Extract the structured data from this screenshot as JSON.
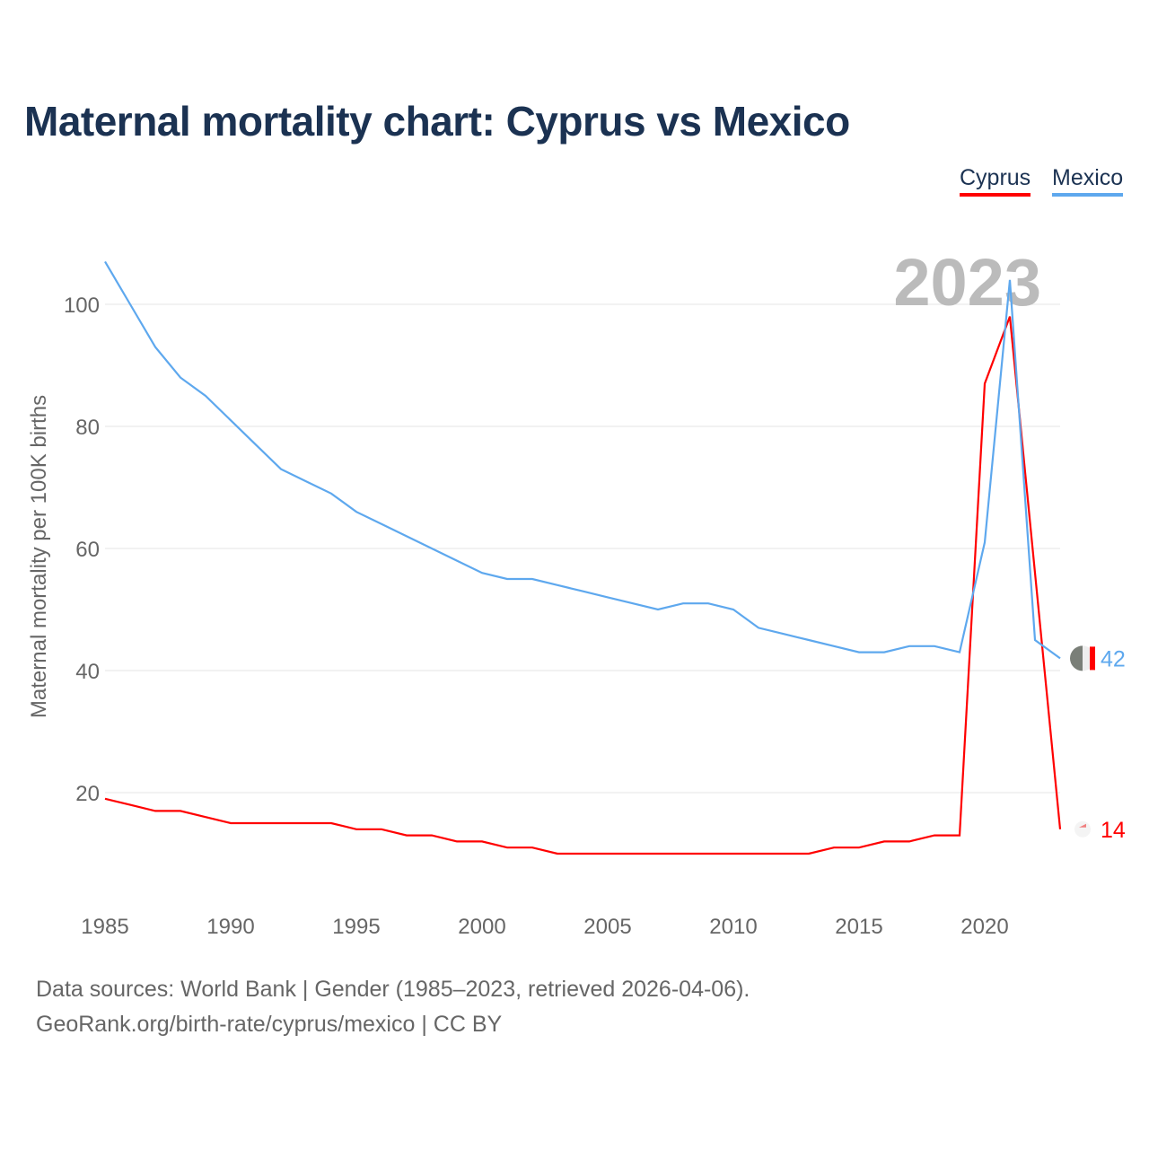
{
  "chart_data": {
    "type": "line",
    "title": "Maternal mortality chart: Cyprus vs Mexico",
    "ylabel": "Maternal mortality per 100K births",
    "xlabel": "",
    "ylim": [
      0,
      110
    ],
    "xlim": [
      1985,
      2023
    ],
    "yticks": [
      20,
      40,
      60,
      80,
      100
    ],
    "xticks": [
      1985,
      1990,
      1995,
      2000,
      2005,
      2010,
      2015,
      2020
    ],
    "year_label": "2023",
    "grid": true,
    "legend_placement": "top-right",
    "x": [
      1985,
      1986,
      1987,
      1988,
      1989,
      1990,
      1991,
      1992,
      1993,
      1994,
      1995,
      1996,
      1997,
      1998,
      1999,
      2000,
      2001,
      2002,
      2003,
      2004,
      2005,
      2006,
      2007,
      2008,
      2009,
      2010,
      2011,
      2012,
      2013,
      2014,
      2015,
      2016,
      2017,
      2018,
      2019,
      2020,
      2021,
      2022,
      2023
    ],
    "series": [
      {
        "name": "Cyprus",
        "color": "#ff0000",
        "end_label": "14",
        "values": [
          19,
          18,
          17,
          17,
          16,
          15,
          15,
          15,
          15,
          15,
          14,
          14,
          13,
          13,
          12,
          12,
          11,
          11,
          10,
          10,
          10,
          10,
          10,
          10,
          10,
          10,
          10,
          10,
          10,
          11,
          11,
          12,
          12,
          13,
          13,
          87,
          98,
          56,
          14
        ]
      },
      {
        "name": "Mexico",
        "color": "#5ea8ee",
        "end_label": "42",
        "values": [
          107,
          100,
          93,
          88,
          85,
          81,
          77,
          73,
          71,
          69,
          66,
          64,
          62,
          60,
          58,
          56,
          55,
          55,
          54,
          53,
          52,
          51,
          50,
          51,
          51,
          50,
          47,
          46,
          45,
          44,
          43,
          43,
          44,
          44,
          43,
          61,
          104,
          45,
          42
        ]
      }
    ]
  },
  "footer": {
    "line1": "Data sources: World Bank | Gender (1985–2023, retrieved 2026-04-06).",
    "line2": "GeoRank.org/birth-rate/cyprus/mexico | CC BY"
  }
}
